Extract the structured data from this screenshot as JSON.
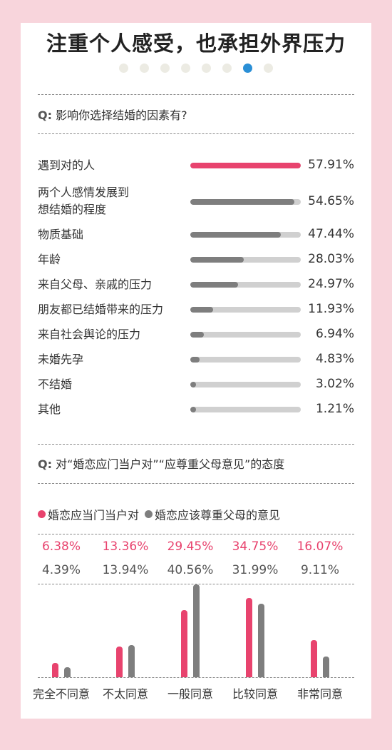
{
  "title": "注重个人感受，也承担外界压力",
  "pagination": {
    "total": 8,
    "active_index": 6
  },
  "question1": {
    "prefix": "Q:",
    "text": "影响你选择结婚的因素有?"
  },
  "question2": {
    "prefix": "Q:",
    "text": "对“婚恋应门当户对”“应尊重父母意见”的态度"
  },
  "colors": {
    "accent": "#e8436e",
    "gray": "#7e7e7e",
    "track": "#d0d0d0",
    "pagination_active": "#2a8fd6"
  },
  "chart_data": [
    {
      "type": "bar",
      "orientation": "horizontal",
      "title": "",
      "categories": [
        "遇到对的人",
        "两个人感情发展到想结婚的程度",
        "物质基础",
        "年龄",
        "来自父母、亲戚的压力",
        "朋友都已结婚带来的压力",
        "来自社会舆论的压力",
        "未婚先孕",
        "不结婚",
        "其他"
      ],
      "category_lines": [
        [
          "遇到对的人"
        ],
        [
          "两个人感情发展到",
          "想结婚的程度"
        ],
        [
          "物质基础"
        ],
        [
          "年龄"
        ],
        [
          "来自父母、亲戚的压力"
        ],
        [
          "朋友都已结婚带来的压力"
        ],
        [
          "来自社会舆论的压力"
        ],
        [
          "未婚先孕"
        ],
        [
          "不结婚"
        ],
        [
          "其他"
        ]
      ],
      "values": [
        57.91,
        54.65,
        47.44,
        28.03,
        24.97,
        11.93,
        6.94,
        4.83,
        3.02,
        1.21
      ],
      "labels": [
        "57.91%",
        "54.65%",
        "47.44%",
        "28.03%",
        "24.97%",
        "11.93%",
        "6.94%",
        "4.83%",
        "3.02%",
        "1.21%"
      ],
      "xlim": [
        0,
        57.91
      ]
    },
    {
      "type": "bar",
      "orientation": "vertical",
      "categories": [
        "完全不同意",
        "不太同意",
        "一般同意",
        "比较同意",
        "非常同意"
      ],
      "series": [
        {
          "name": "婚恋应当门当户对",
          "color": "#e8436e",
          "values": [
            6.38,
            13.36,
            29.45,
            34.75,
            16.07
          ],
          "labels": [
            "6.38%",
            "13.36%",
            "29.45%",
            "34.75%",
            "16.07%"
          ]
        },
        {
          "name": "婚恋应该尊重父母的意见",
          "color": "#7e7e7e",
          "values": [
            4.39,
            13.94,
            40.56,
            31.99,
            9.11
          ],
          "labels": [
            "4.39%",
            "13.94%",
            "40.56%",
            "31.99%",
            "9.11%"
          ]
        }
      ],
      "ylim": [
        0,
        40.56
      ],
      "legend": "top-left"
    }
  ]
}
